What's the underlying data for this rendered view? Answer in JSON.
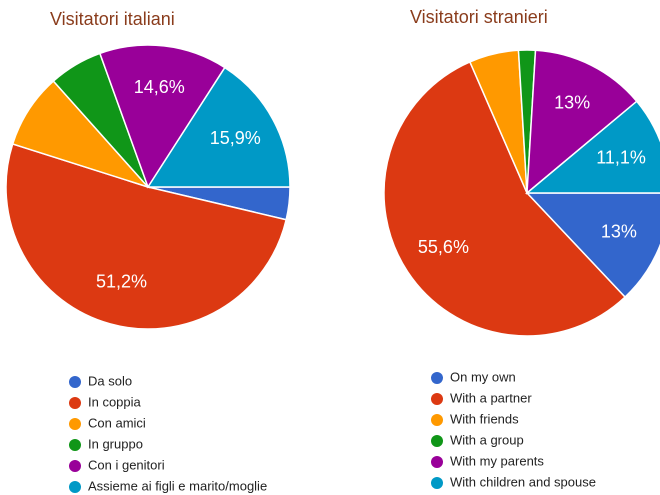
{
  "chart_data": [
    {
      "type": "pie",
      "title": "Visitatori italiani",
      "categories": [
        "Da solo",
        "In coppia",
        "Con amici",
        "In gruppo",
        "Con i genitori",
        "Assieme ai figli e marito/moglie"
      ],
      "values": [
        3.7,
        51.2,
        8.5,
        6.1,
        14.6,
        15.9
      ],
      "value_labels": [
        null,
        "51,2%",
        null,
        null,
        "14,6%",
        "15,9%"
      ],
      "colors": [
        "#3366cc",
        "#dc3912",
        "#ff9900",
        "#109618",
        "#990099",
        "#0099c6"
      ]
    },
    {
      "type": "pie",
      "title": "Visitatori stranieri",
      "categories": [
        "On my own",
        "With a partner",
        "With friends",
        "With a group",
        "With my parents",
        "With children and spouse"
      ],
      "values": [
        13,
        55.6,
        5.6,
        1.9,
        13,
        11.1
      ],
      "value_labels": [
        "13%",
        "55,6%",
        null,
        null,
        "13%",
        "11,1%"
      ],
      "colors": [
        "#3366cc",
        "#dc3912",
        "#ff9900",
        "#109618",
        "#990099",
        "#0099c6"
      ]
    }
  ]
}
